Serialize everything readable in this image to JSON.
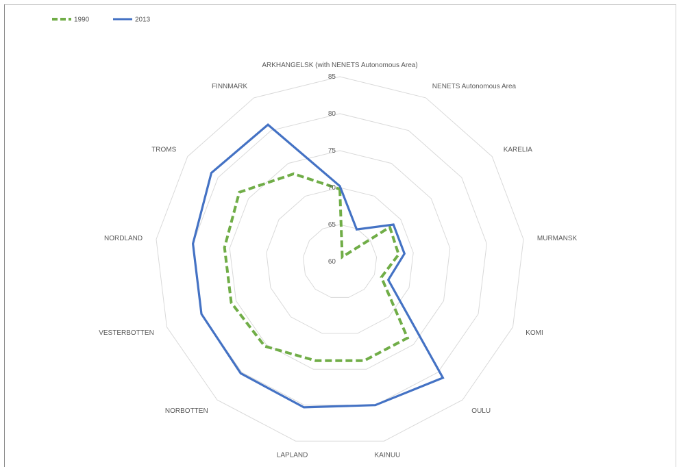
{
  "chart_data": {
    "type": "radar",
    "title": "",
    "categories": [
      "ARKHANGELSK (with NENETS Autonomous Area)",
      "NENETS Autonomous Area",
      "KARELIA",
      "MURMANSK",
      "KOMI",
      "OULU",
      "KAINUU",
      "LAPLAND",
      "NORBOTTEN",
      "VESTERBOTTEN",
      "NORDLAND",
      "TROMS",
      "FINNMARK"
    ],
    "rlim": [
      60,
      85
    ],
    "ticks": [
      "60",
      "65",
      "70",
      "75",
      "80",
      "85"
    ],
    "grid": true,
    "legend_position": "top-left",
    "series": [
      {
        "name": "1990",
        "style": "dashed",
        "color": "#70AD47",
        "values": [
          69.8,
          60.7,
          68.2,
          68.0,
          66.0,
          73.8,
          73.8,
          73.8,
          75.3,
          75.7,
          75.7,
          76.5,
          73.4
        ]
      },
      {
        "name": "2013",
        "style": "solid",
        "color": "#4472C4",
        "values": [
          70.2,
          64.9,
          68.8,
          68.8,
          67.0,
          81.0,
          80.0,
          80.3,
          80.2,
          80.0,
          80.0,
          81.1,
          80.9
        ]
      }
    ]
  }
}
